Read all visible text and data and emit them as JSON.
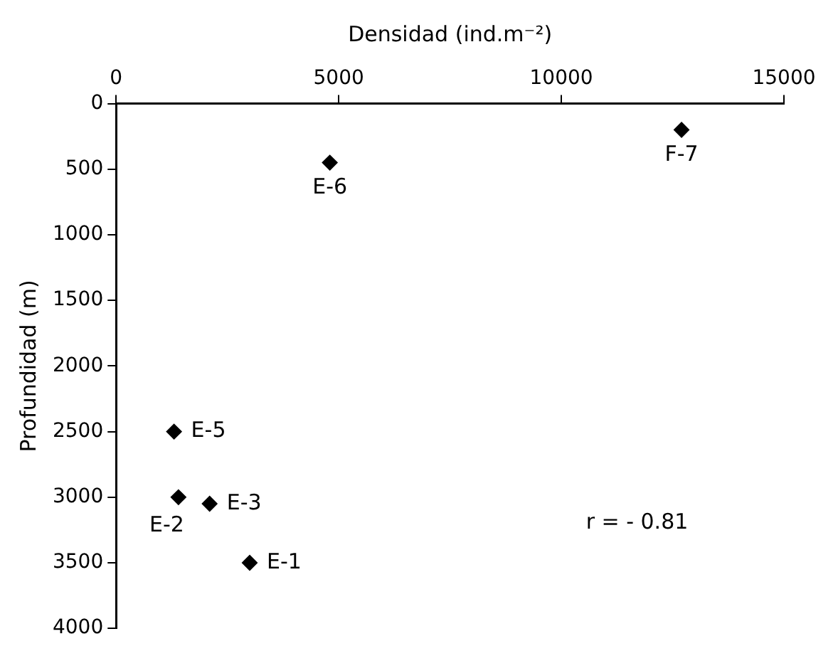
{
  "chart_data": {
    "type": "scatter",
    "xlabel": "Densidad (ind.m⁻²)",
    "ylabel": "Profundidad (m)",
    "series": [
      {
        "color": "#000000",
        "x": [
          1300,
          1400,
          2100,
          3000,
          4800,
          12700
        ],
        "values": [
          2500,
          3000,
          3050,
          3500,
          450,
          200
        ]
      }
    ],
    "xlim": [
      0,
      15000
    ],
    "xticks": [
      0,
      5000,
      10000,
      15000
    ],
    "ylim": [
      4000,
      0
    ],
    "yticks": [
      0,
      500,
      1000,
      1500,
      2000,
      2500,
      3000,
      3500,
      4000
    ],
    "marker": "diamond",
    "grid": false,
    "legend": false,
    "annotations": [
      {
        "text": "E-5",
        "x": 1300,
        "y": 2500
      },
      {
        "text": "E-2",
        "x": 1400,
        "y": 3000
      },
      {
        "text": "E-3",
        "x": 2100,
        "y": 3050
      },
      {
        "text": "E-1",
        "x": 3000,
        "y": 3500
      },
      {
        "text": "E-6",
        "x": 4800,
        "y": 450
      },
      {
        "text": "F-7",
        "x": 12700,
        "y": 200
      },
      "r = - 0.81"
    ]
  }
}
